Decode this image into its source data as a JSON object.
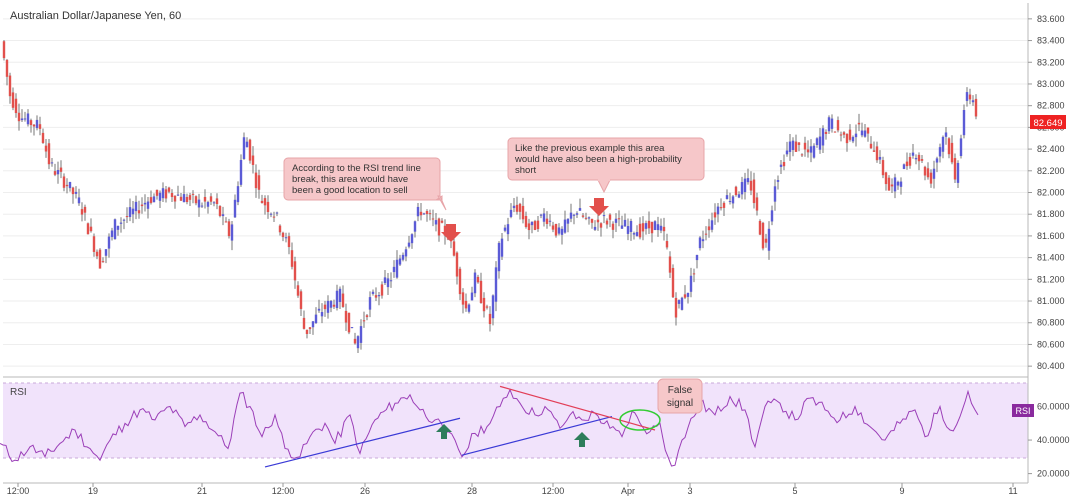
{
  "chart_data": [
    {
      "type": "candlestick",
      "title": "Australian Dollar/Japanese Yen, 60",
      "ylim": [
        80.3,
        83.7
      ],
      "y_ticks": [
        "83.600",
        "83.400",
        "83.200",
        "83.000",
        "82.800",
        "82.600",
        "82.400",
        "82.200",
        "82.000",
        "81.800",
        "81.600",
        "81.400",
        "81.200",
        "81.000",
        "80.800",
        "80.600",
        "80.400"
      ],
      "x_ticks": [
        "12:00",
        "19",
        "21",
        "12:00",
        "26",
        "28",
        "12:00",
        "Apr",
        "3",
        "5",
        "9",
        "11"
      ],
      "last_price": "82.649",
      "grid": true,
      "colors": {
        "up": "#5b5bd6",
        "down": "#e2504c",
        "price_badge": "#ee2222"
      },
      "path_anchors": [
        [
          0,
          83.45
        ],
        [
          10,
          82.9
        ],
        [
          20,
          82.7
        ],
        [
          40,
          82.6
        ],
        [
          50,
          82.25
        ],
        [
          65,
          82.1
        ],
        [
          80,
          81.9
        ],
        [
          100,
          81.35
        ],
        [
          115,
          81.7
        ],
        [
          130,
          81.8
        ],
        [
          150,
          81.95
        ],
        [
          170,
          82.0
        ],
        [
          200,
          81.9
        ],
        [
          215,
          81.9
        ],
        [
          230,
          81.6
        ],
        [
          245,
          82.55
        ],
        [
          260,
          81.95
        ],
        [
          275,
          81.8
        ],
        [
          290,
          81.45
        ],
        [
          305,
          80.7
        ],
        [
          320,
          80.9
        ],
        [
          340,
          81.05
        ],
        [
          355,
          80.6
        ],
        [
          370,
          81.0
        ],
        [
          390,
          81.2
        ],
        [
          405,
          81.5
        ],
        [
          420,
          81.85
        ],
        [
          435,
          81.7
        ],
        [
          450,
          81.6
        ],
        [
          465,
          80.9
        ],
        [
          475,
          81.2
        ],
        [
          490,
          80.8
        ],
        [
          500,
          81.55
        ],
        [
          515,
          81.9
        ],
        [
          530,
          81.65
        ],
        [
          545,
          81.8
        ],
        [
          560,
          81.6
        ],
        [
          575,
          81.85
        ],
        [
          590,
          81.7
        ],
        [
          605,
          81.75
        ],
        [
          620,
          81.7
        ],
        [
          640,
          81.65
        ],
        [
          655,
          81.7
        ],
        [
          665,
          81.6
        ],
        [
          675,
          80.9
        ],
        [
          690,
          81.15
        ],
        [
          700,
          81.55
        ],
        [
          720,
          81.9
        ],
        [
          750,
          82.1
        ],
        [
          765,
          81.45
        ],
        [
          775,
          82.1
        ],
        [
          790,
          82.45
        ],
        [
          810,
          82.35
        ],
        [
          830,
          82.65
        ],
        [
          845,
          82.5
        ],
        [
          860,
          82.6
        ],
        [
          875,
          82.4
        ],
        [
          890,
          82.0
        ],
        [
          900,
          82.15
        ],
        [
          915,
          82.4
        ],
        [
          930,
          82.1
        ],
        [
          945,
          82.6
        ],
        [
          955,
          82.1
        ],
        [
          965,
          82.85
        ],
        [
          972,
          82.9
        ],
        [
          978,
          82.65
        ]
      ],
      "annotations": [
        {
          "text": [
            "According to the RSI trend line",
            "break, this area would have",
            "been a good location to sell"
          ],
          "arrow": "down"
        },
        {
          "text": [
            "Like the previous example this area",
            "would have also been a high-probability",
            "short"
          ],
          "arrow": "down"
        }
      ]
    },
    {
      "type": "line",
      "title": "RSI",
      "ylim": [
        15,
        77
      ],
      "band": [
        30,
        70
      ],
      "y_ticks": [
        "60.0000",
        "40.0000",
        "20.0000"
      ],
      "last_label": "RSI",
      "colors": {
        "line": "#9b3fb8",
        "band": "#f1e3fb",
        "badge": "#8a2a9e"
      },
      "path_anchors": [
        [
          0,
          38
        ],
        [
          15,
          28
        ],
        [
          30,
          36
        ],
        [
          45,
          30
        ],
        [
          60,
          38
        ],
        [
          75,
          46
        ],
        [
          90,
          35
        ],
        [
          100,
          28
        ],
        [
          110,
          40
        ],
        [
          125,
          50
        ],
        [
          140,
          58
        ],
        [
          155,
          52
        ],
        [
          170,
          60
        ],
        [
          185,
          48
        ],
        [
          200,
          55
        ],
        [
          215,
          45
        ],
        [
          228,
          35
        ],
        [
          240,
          68
        ],
        [
          250,
          60
        ],
        [
          262,
          42
        ],
        [
          275,
          55
        ],
        [
          285,
          35
        ],
        [
          300,
          30
        ],
        [
          310,
          42
        ],
        [
          325,
          50
        ],
        [
          335,
          38
        ],
        [
          350,
          55
        ],
        [
          360,
          32
        ],
        [
          375,
          52
        ],
        [
          395,
          62
        ],
        [
          410,
          67
        ],
        [
          420,
          58
        ],
        [
          435,
          52
        ],
        [
          445,
          44
        ],
        [
          455,
          40
        ],
        [
          462,
          30
        ],
        [
          475,
          44
        ],
        [
          490,
          50
        ],
        [
          500,
          60
        ],
        [
          510,
          70
        ],
        [
          520,
          62
        ],
        [
          535,
          55
        ],
        [
          545,
          60
        ],
        [
          560,
          47
        ],
        [
          570,
          55
        ],
        [
          582,
          52
        ],
        [
          595,
          56
        ],
        [
          610,
          47
        ],
        [
          622,
          42
        ],
        [
          632,
          57
        ],
        [
          640,
          50
        ],
        [
          650,
          45
        ],
        [
          660,
          50
        ],
        [
          668,
          30
        ],
        [
          675,
          25
        ],
        [
          682,
          40
        ],
        [
          700,
          62
        ],
        [
          715,
          55
        ],
        [
          730,
          66
        ],
        [
          745,
          58
        ],
        [
          755,
          36
        ],
        [
          765,
          60
        ],
        [
          780,
          62
        ],
        [
          795,
          52
        ],
        [
          810,
          65
        ],
        [
          825,
          58
        ],
        [
          840,
          52
        ],
        [
          855,
          60
        ],
        [
          870,
          48
        ],
        [
          885,
          40
        ],
        [
          900,
          50
        ],
        [
          915,
          58
        ],
        [
          925,
          42
        ],
        [
          940,
          60
        ],
        [
          950,
          46
        ],
        [
          960,
          54
        ],
        [
          968,
          69
        ],
        [
          975,
          58
        ],
        [
          978,
          55
        ]
      ],
      "trend_lines": [
        {
          "points": [
            [
              265,
              24
            ],
            [
              460,
              53
            ]
          ],
          "color": "#3a3ad6"
        },
        {
          "points": [
            [
              462,
              31
            ],
            [
              612,
              54
            ]
          ],
          "color": "#3a3ad6"
        },
        {
          "points": [
            [
              500,
              72
            ],
            [
              655,
              46
            ]
          ],
          "color": "#e23e57"
        }
      ],
      "callout": {
        "text": [
          "False",
          "signal"
        ]
      }
    }
  ]
}
